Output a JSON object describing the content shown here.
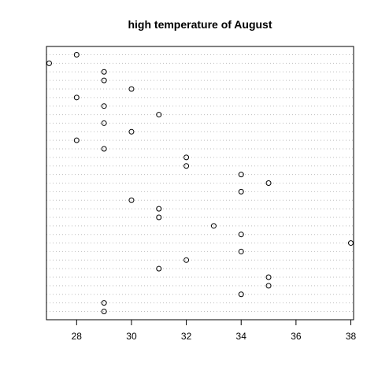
{
  "chart_data": {
    "type": "scatter",
    "subtype": "dotchart",
    "title": "high temperature of August",
    "xlabel": "",
    "ylabel": "",
    "xlim": [
      26.9,
      38.1
    ],
    "xticks": [
      28,
      30,
      32,
      34,
      36,
      38
    ],
    "grid": "dotted horizontal line per point",
    "series": [
      {
        "values": [
          29,
          29,
          34,
          35,
          35,
          31,
          32,
          34,
          38,
          34,
          33,
          31,
          31,
          30,
          34,
          35,
          34,
          32,
          32,
          29,
          28,
          30,
          29,
          31,
          29,
          28,
          30,
          29,
          29,
          27,
          28
        ]
      }
    ]
  }
}
